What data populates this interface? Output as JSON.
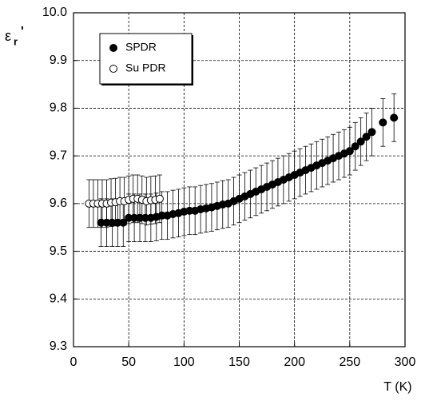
{
  "chart_data": {
    "type": "scatter",
    "xlabel": "T (K)",
    "ylabel": {
      "symbol": "ε",
      "subscript": "r",
      "prime": "'"
    },
    "xlim": [
      0,
      300
    ],
    "xticks": [
      0,
      50,
      100,
      150,
      200,
      250,
      300
    ],
    "ylim": [
      9.3,
      10.0
    ],
    "yticks": [
      9.3,
      9.4,
      9.5,
      9.6,
      9.7,
      9.8,
      9.9,
      {
        "value": 10.0,
        "label": "10.0"
      }
    ],
    "grid": true,
    "legend": "upper-left",
    "series": [
      {
        "name": "SPDR",
        "color": "#000000",
        "filled": true,
        "x": [
          25,
          30,
          35,
          40,
          45,
          50,
          55,
          60,
          65,
          70,
          75,
          80,
          85,
          90,
          95,
          100,
          105,
          110,
          115,
          120,
          125,
          130,
          135,
          140,
          145,
          150,
          155,
          160,
          165,
          170,
          175,
          180,
          185,
          190,
          195,
          200,
          205,
          210,
          215,
          220,
          225,
          230,
          235,
          240,
          245,
          250,
          255,
          260,
          265,
          270,
          280,
          290
        ],
        "values": [
          9.56,
          9.56,
          9.56,
          9.56,
          9.56,
          9.57,
          9.57,
          9.57,
          9.57,
          9.57,
          9.572,
          9.575,
          9.575,
          9.578,
          9.58,
          9.583,
          9.585,
          9.585,
          9.588,
          9.59,
          9.592,
          9.595,
          9.598,
          9.6,
          9.605,
          9.61,
          9.615,
          9.62,
          9.625,
          9.63,
          9.635,
          9.64,
          9.645,
          9.65,
          9.655,
          9.66,
          9.665,
          9.67,
          9.675,
          9.68,
          9.685,
          9.69,
          9.695,
          9.7,
          9.705,
          9.71,
          9.72,
          9.73,
          9.74,
          9.75,
          9.77,
          9.78
        ],
        "errors": [
          0.05,
          0.05,
          0.05,
          0.05,
          0.05,
          0.05,
          0.05,
          0.05,
          0.05,
          0.05,
          0.05,
          0.05,
          0.05,
          0.05,
          0.05,
          0.05,
          0.05,
          0.05,
          0.05,
          0.05,
          0.05,
          0.05,
          0.05,
          0.05,
          0.05,
          0.05,
          0.05,
          0.05,
          0.05,
          0.05,
          0.05,
          0.05,
          0.05,
          0.05,
          0.05,
          0.05,
          0.05,
          0.05,
          0.05,
          0.05,
          0.05,
          0.05,
          0.05,
          0.05,
          0.05,
          0.05,
          0.05,
          0.05,
          0.05,
          0.05,
          0.05,
          0.05
        ]
      },
      {
        "name": "Su PDR",
        "color": "#000000",
        "filled": false,
        "x": [
          14,
          18,
          22,
          26,
          30,
          34,
          38,
          42,
          46,
          50,
          54,
          58,
          62,
          66,
          70,
          74,
          78
        ],
        "values": [
          9.6,
          9.6,
          9.6,
          9.6,
          9.6,
          9.602,
          9.603,
          9.605,
          9.605,
          9.608,
          9.61,
          9.61,
          9.608,
          9.605,
          9.607,
          9.608,
          9.61
        ],
        "errors": [
          0.05,
          0.05,
          0.05,
          0.05,
          0.05,
          0.05,
          0.05,
          0.05,
          0.05,
          0.05,
          0.05,
          0.05,
          0.05,
          0.05,
          0.05,
          0.05,
          0.05
        ]
      }
    ]
  }
}
